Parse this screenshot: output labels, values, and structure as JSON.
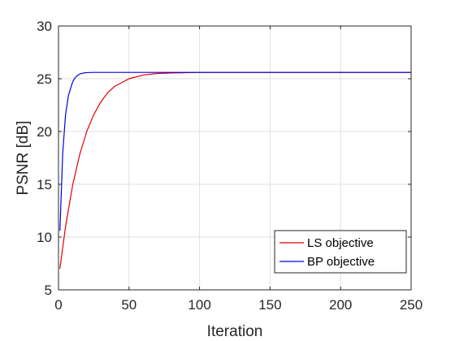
{
  "chart_data": {
    "type": "line",
    "title": "",
    "xlabel": "Iteration",
    "ylabel": "PSNR [dB]",
    "xlim": [
      0,
      250
    ],
    "ylim": [
      5,
      30
    ],
    "xticks": [
      0,
      50,
      100,
      150,
      200,
      250
    ],
    "yticks": [
      5,
      10,
      15,
      20,
      25,
      30
    ],
    "grid": true,
    "legend_position": "bottom-right",
    "series": [
      {
        "name": "LS objective",
        "color": "#e00000",
        "x": [
          1,
          5,
          10,
          15,
          20,
          25,
          30,
          35,
          40,
          50,
          60,
          70,
          80,
          100,
          150,
          200,
          250
        ],
        "y": [
          7.0,
          11.0,
          14.9,
          17.8,
          20.0,
          21.6,
          22.8,
          23.7,
          24.3,
          25.0,
          25.35,
          25.5,
          25.55,
          25.6,
          25.6,
          25.6,
          25.6
        ]
      },
      {
        "name": "BP objective",
        "color": "#0000e0",
        "x": [
          1,
          3,
          5,
          7,
          10,
          12,
          15,
          18,
          20,
          25,
          30,
          50,
          100,
          150,
          200,
          250
        ],
        "y": [
          10.6,
          18.0,
          21.6,
          23.4,
          24.7,
          25.15,
          25.45,
          25.55,
          25.58,
          25.6,
          25.6,
          25.6,
          25.6,
          25.6,
          25.6,
          25.6
        ]
      }
    ]
  }
}
